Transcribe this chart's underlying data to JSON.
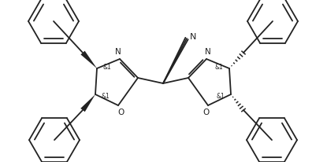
{
  "bg_color": "#ffffff",
  "line_color": "#222222",
  "lw": 1.3,
  "figsize": [
    4.15,
    2.06
  ],
  "dpi": 100,
  "xlim": [
    0,
    415
  ],
  "ylim": [
    0,
    206
  ]
}
